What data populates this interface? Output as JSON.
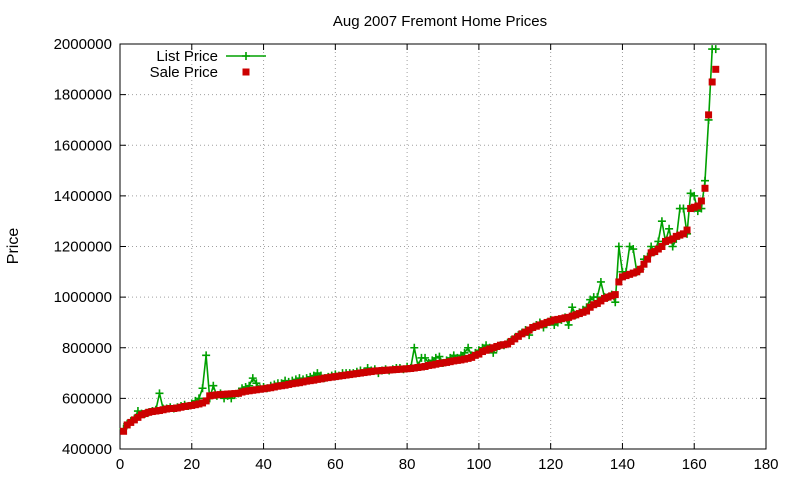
{
  "chart_data": {
    "type": "line",
    "title": "Aug 2007 Fremont Home Prices",
    "xlabel": "",
    "ylabel": "Price",
    "xlim": [
      0,
      180
    ],
    "ylim": [
      400000,
      2000000
    ],
    "xticks": [
      0,
      20,
      40,
      60,
      80,
      100,
      120,
      140,
      160,
      180
    ],
    "yticks": [
      400000,
      600000,
      800000,
      1000000,
      1200000,
      1400000,
      1600000,
      1800000,
      2000000
    ],
    "grid": true,
    "legend_position": "top-left",
    "series": [
      {
        "name": "List Price",
        "style": "lines+plus-markers",
        "color": "#00a000",
        "x": [
          1,
          2,
          3,
          4,
          5,
          6,
          7,
          8,
          9,
          10,
          11,
          12,
          13,
          14,
          15,
          16,
          17,
          18,
          19,
          20,
          21,
          22,
          23,
          24,
          25,
          26,
          27,
          28,
          29,
          30,
          31,
          32,
          33,
          34,
          35,
          36,
          37,
          38,
          39,
          40,
          41,
          42,
          43,
          44,
          45,
          46,
          47,
          48,
          49,
          50,
          51,
          52,
          53,
          54,
          55,
          56,
          57,
          58,
          59,
          60,
          61,
          62,
          63,
          64,
          65,
          66,
          67,
          68,
          69,
          70,
          71,
          72,
          73,
          74,
          75,
          76,
          77,
          78,
          79,
          80,
          81,
          82,
          83,
          84,
          85,
          86,
          87,
          88,
          89,
          90,
          91,
          92,
          93,
          94,
          95,
          96,
          97,
          98,
          99,
          100,
          101,
          102,
          103,
          104,
          105,
          106,
          107,
          108,
          109,
          110,
          111,
          112,
          113,
          114,
          115,
          116,
          117,
          118,
          119,
          120,
          121,
          122,
          123,
          124,
          125,
          126,
          127,
          128,
          129,
          130,
          131,
          132,
          133,
          134,
          135,
          136,
          137,
          138,
          139,
          140,
          141,
          142,
          143,
          144,
          145,
          146,
          147,
          148,
          149,
          150,
          151,
          152,
          153,
          154,
          155,
          156,
          157,
          158,
          159,
          160,
          161,
          162,
          163,
          164,
          165,
          166
        ],
        "y": [
          480000,
          500000,
          510000,
          520000,
          550000,
          540000,
          540000,
          545000,
          550000,
          555000,
          620000,
          560000,
          560000,
          565000,
          560000,
          565000,
          570000,
          575000,
          570000,
          580000,
          590000,
          600000,
          640000,
          770000,
          600000,
          650000,
          610000,
          620000,
          600000,
          610000,
          600000,
          615000,
          620000,
          640000,
          645000,
          650000,
          680000,
          660000,
          640000,
          645000,
          640000,
          650000,
          655000,
          660000,
          660000,
          670000,
          665000,
          670000,
          675000,
          680000,
          675000,
          680000,
          685000,
          690000,
          700000,
          690000,
          680000,
          685000,
          690000,
          695000,
          690000,
          700000,
          700000,
          700000,
          700000,
          705000,
          710000,
          705000,
          720000,
          710000,
          715000,
          700000,
          710000,
          715000,
          710000,
          715000,
          720000,
          720000,
          715000,
          725000,
          720000,
          800000,
          730000,
          760000,
          760000,
          740000,
          750000,
          760000,
          765000,
          740000,
          750000,
          760000,
          770000,
          760000,
          770000,
          780000,
          800000,
          770000,
          780000,
          790000,
          800000,
          810000,
          800000,
          780000,
          800000,
          810000,
          810000,
          820000,
          830000,
          840000,
          850000,
          860000,
          870000,
          850000,
          880000,
          890000,
          900000,
          880000,
          900000,
          910000,
          890000,
          900000,
          910000,
          920000,
          890000,
          960000,
          930000,
          940000,
          950000,
          960000,
          990000,
          1000000,
          1000000,
          1060000,
          1000000,
          1000000,
          1010000,
          980000,
          1200000,
          1100000,
          1100000,
          1200000,
          1190000,
          1100000,
          1110000,
          1150000,
          1160000,
          1200000,
          1180000,
          1220000,
          1300000,
          1220000,
          1270000,
          1200000,
          1230000,
          1350000,
          1350000,
          1250000,
          1410000,
          1400000,
          1340000,
          1350000,
          1460000,
          1700000,
          1980000,
          1980000
        ]
      },
      {
        "name": "Sale Price",
        "style": "square-markers",
        "color": "#cc0000",
        "x": [
          1,
          2,
          3,
          4,
          5,
          6,
          7,
          8,
          9,
          10,
          11,
          12,
          13,
          14,
          15,
          16,
          17,
          18,
          19,
          20,
          21,
          22,
          23,
          24,
          25,
          26,
          27,
          28,
          29,
          30,
          31,
          32,
          33,
          34,
          35,
          36,
          37,
          38,
          39,
          40,
          41,
          42,
          43,
          44,
          45,
          46,
          47,
          48,
          49,
          50,
          51,
          52,
          53,
          54,
          55,
          56,
          57,
          58,
          59,
          60,
          61,
          62,
          63,
          64,
          65,
          66,
          67,
          68,
          69,
          70,
          71,
          72,
          73,
          74,
          75,
          76,
          77,
          78,
          79,
          80,
          81,
          82,
          83,
          84,
          85,
          86,
          87,
          88,
          89,
          90,
          91,
          92,
          93,
          94,
          95,
          96,
          97,
          98,
          99,
          100,
          101,
          102,
          103,
          104,
          105,
          106,
          107,
          108,
          109,
          110,
          111,
          112,
          113,
          114,
          115,
          116,
          117,
          118,
          119,
          120,
          121,
          122,
          123,
          124,
          125,
          126,
          127,
          128,
          129,
          130,
          131,
          132,
          133,
          134,
          135,
          136,
          137,
          138,
          139,
          140,
          141,
          142,
          143,
          144,
          145,
          146,
          147,
          148,
          149,
          150,
          151,
          152,
          153,
          154,
          155,
          156,
          157,
          158,
          159,
          160,
          161,
          162,
          163,
          164,
          165,
          166
        ],
        "y": [
          470000,
          495000,
          505000,
          515000,
          525000,
          535000,
          540000,
          545000,
          548000,
          550000,
          552000,
          555000,
          558000,
          560000,
          560000,
          562000,
          565000,
          568000,
          570000,
          572000,
          575000,
          578000,
          582000,
          590000,
          610000,
          612000,
          614000,
          615000,
          616000,
          617000,
          618000,
          619000,
          620000,
          625000,
          628000,
          630000,
          632000,
          634000,
          636000,
          638000,
          640000,
          642000,
          645000,
          648000,
          650000,
          652000,
          655000,
          658000,
          660000,
          662000,
          665000,
          668000,
          670000,
          672000,
          675000,
          677000,
          680000,
          682000,
          684000,
          686000,
          688000,
          690000,
          692000,
          694000,
          696000,
          698000,
          700000,
          702000,
          704000,
          706000,
          708000,
          709000,
          710000,
          711000,
          712000,
          713000,
          714000,
          715000,
          716000,
          717000,
          718000,
          720000,
          722000,
          724000,
          726000,
          730000,
          732000,
          735000,
          738000,
          740000,
          742000,
          745000,
          748000,
          750000,
          752000,
          755000,
          758000,
          762000,
          770000,
          775000,
          785000,
          790000,
          795000,
          800000,
          805000,
          810000,
          812000,
          815000,
          825000,
          835000,
          845000,
          855000,
          862000,
          870000,
          880000,
          885000,
          890000,
          895000,
          900000,
          905000,
          910000,
          912000,
          915000,
          918000,
          920000,
          925000,
          930000,
          935000,
          940000,
          945000,
          960000,
          970000,
          975000,
          985000,
          995000,
          1000000,
          1005000,
          1010000,
          1060000,
          1080000,
          1085000,
          1090000,
          1095000,
          1100000,
          1110000,
          1130000,
          1150000,
          1175000,
          1180000,
          1190000,
          1200000,
          1220000,
          1225000,
          1230000,
          1240000,
          1245000,
          1250000,
          1265000,
          1350000,
          1355000,
          1360000,
          1380000,
          1430000,
          1720000,
          1850000,
          1900000
        ]
      }
    ]
  }
}
